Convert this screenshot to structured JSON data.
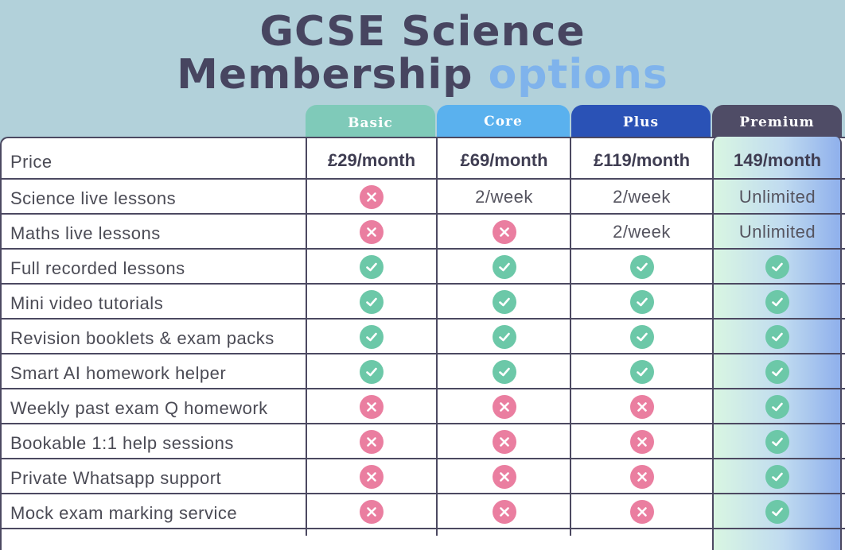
{
  "header": {
    "title_line1": "GCSE Science",
    "title_line2_main": "Membership",
    "title_line2_accent": "options"
  },
  "plans": [
    {
      "name": "Basic",
      "price": "£29/month",
      "color": "#7fcab9"
    },
    {
      "name": "Core",
      "price": "£69/month",
      "color": "#5ab1ee"
    },
    {
      "name": "Plus",
      "price": "£119/month",
      "color": "#2a52b6"
    },
    {
      "name": "Premium",
      "price": "149/month",
      "color": "#4f4c66"
    }
  ],
  "price_label": "Price",
  "features": [
    {
      "label": "Science live lessons",
      "values": [
        "cross",
        "2/week",
        "2/week",
        "Unlimited"
      ]
    },
    {
      "label": "Maths live lessons",
      "values": [
        "cross",
        "cross",
        "2/week",
        "Unlimited"
      ]
    },
    {
      "label": "Full recorded lessons",
      "values": [
        "check",
        "check",
        "check",
        "check"
      ]
    },
    {
      "label": "Mini video tutorials",
      "values": [
        "check",
        "check",
        "check",
        "check"
      ]
    },
    {
      "label": "Revision booklets & exam packs",
      "values": [
        "check",
        "check",
        "check",
        "check"
      ]
    },
    {
      "label": "Smart AI homework helper",
      "values": [
        "check",
        "check",
        "check",
        "check"
      ]
    },
    {
      "label": "Weekly past exam Q homework",
      "values": [
        "cross",
        "cross",
        "cross",
        "check"
      ]
    },
    {
      "label": "Bookable 1:1 help sessions",
      "values": [
        "cross",
        "cross",
        "cross",
        "check"
      ]
    },
    {
      "label": "Private Whatsapp support",
      "values": [
        "cross",
        "cross",
        "cross",
        "check"
      ]
    },
    {
      "label": "Mock exam marking service",
      "values": [
        "cross",
        "cross",
        "cross",
        "check"
      ]
    }
  ],
  "icons": {
    "check": "check-icon",
    "cross": "cross-icon"
  },
  "colors": {
    "check": "#6cc8a8",
    "cross": "#ea7ea0",
    "accent": "#7fb3ec",
    "title": "#474560"
  }
}
